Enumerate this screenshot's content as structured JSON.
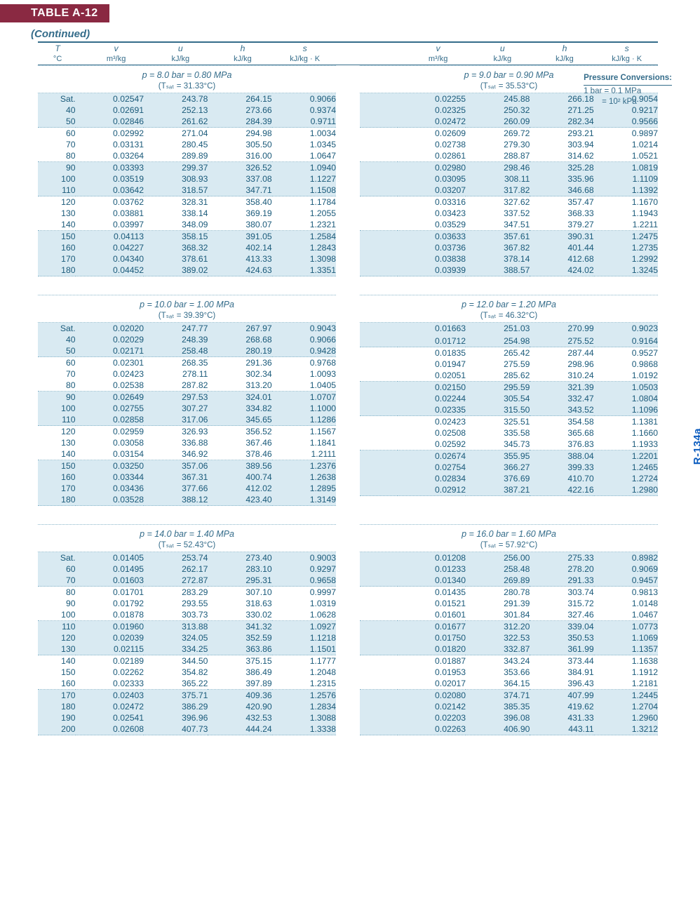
{
  "table_label": "TABLE A-12",
  "continued": "(Continued)",
  "vlabel": "R-134a",
  "sidebox": {
    "title": "Pressure Conversions:",
    "line1": "1 bar = 0.1 MPa",
    "line2": "= 10² kPa"
  },
  "header_syms": [
    "T",
    "v",
    "u",
    "h",
    "s"
  ],
  "header_units": [
    "°C",
    "m³/kg",
    "kJ/kg",
    "kJ/kg",
    "kJ/kg · K"
  ],
  "colors": {
    "accent": "#346c8a",
    "bar": "#8a2942",
    "band": "#d9eaf2",
    "page": "#ffffff",
    "outer": "#dceef5",
    "link_blue": "#0a5bbf"
  },
  "typography": {
    "base_font": "Helvetica Neue, Arial",
    "base_size_pt": 12.2,
    "header_italic": true
  },
  "blocks": [
    {
      "left": {
        "p": "p = 8.0 bar = 0.80 MPa",
        "tsat": "(Tₛₐₜ = 31.33°C)",
        "groups": [
          [
            [
              "Sat.",
              "0.02547",
              "243.78",
              "264.15",
              "0.9066"
            ],
            [
              "40",
              "0.02691",
              "252.13",
              "273.66",
              "0.9374"
            ],
            [
              "50",
              "0.02846",
              "261.62",
              "284.39",
              "0.9711"
            ]
          ],
          [
            [
              "60",
              "0.02992",
              "271.04",
              "294.98",
              "1.0034"
            ],
            [
              "70",
              "0.03131",
              "280.45",
              "305.50",
              "1.0345"
            ],
            [
              "80",
              "0.03264",
              "289.89",
              "316.00",
              "1.0647"
            ]
          ],
          [
            [
              "90",
              "0.03393",
              "299.37",
              "326.52",
              "1.0940"
            ],
            [
              "100",
              "0.03519",
              "308.93",
              "337.08",
              "1.1227"
            ],
            [
              "110",
              "0.03642",
              "318.57",
              "347.71",
              "1.1508"
            ]
          ],
          [
            [
              "120",
              "0.03762",
              "328.31",
              "358.40",
              "1.1784"
            ],
            [
              "130",
              "0.03881",
              "338.14",
              "369.19",
              "1.2055"
            ],
            [
              "140",
              "0.03997",
              "348.09",
              "380.07",
              "1.2321"
            ]
          ],
          [
            [
              "150",
              "0.04113",
              "358.15",
              "391.05",
              "1.2584"
            ],
            [
              "160",
              "0.04227",
              "368.32",
              "402.14",
              "1.2843"
            ],
            [
              "170",
              "0.04340",
              "378.61",
              "413.33",
              "1.3098"
            ],
            [
              "180",
              "0.04452",
              "389.02",
              "424.63",
              "1.3351"
            ]
          ]
        ]
      },
      "right": {
        "p": "p = 9.0 bar = 0.90 MPa",
        "tsat": "(Tₛₐₜ = 35.53°C)",
        "groups": [
          [
            [
              "",
              "0.02255",
              "245.88",
              "266.18",
              "0.9054"
            ],
            [
              "",
              "0.02325",
              "250.32",
              "271.25",
              "0.9217"
            ],
            [
              "",
              "0.02472",
              "260.09",
              "282.34",
              "0.9566"
            ]
          ],
          [
            [
              "",
              "0.02609",
              "269.72",
              "293.21",
              "0.9897"
            ],
            [
              "",
              "0.02738",
              "279.30",
              "303.94",
              "1.0214"
            ],
            [
              "",
              "0.02861",
              "288.87",
              "314.62",
              "1.0521"
            ]
          ],
          [
            [
              "",
              "0.02980",
              "298.46",
              "325.28",
              "1.0819"
            ],
            [
              "",
              "0.03095",
              "308.11",
              "335.96",
              "1.1109"
            ],
            [
              "",
              "0.03207",
              "317.82",
              "346.68",
              "1.1392"
            ]
          ],
          [
            [
              "",
              "0.03316",
              "327.62",
              "357.47",
              "1.1670"
            ],
            [
              "",
              "0.03423",
              "337.52",
              "368.33",
              "1.1943"
            ],
            [
              "",
              "0.03529",
              "347.51",
              "379.27",
              "1.2211"
            ]
          ],
          [
            [
              "",
              "0.03633",
              "357.61",
              "390.31",
              "1.2475"
            ],
            [
              "",
              "0.03736",
              "367.82",
              "401.44",
              "1.2735"
            ],
            [
              "",
              "0.03838",
              "378.14",
              "412.68",
              "1.2992"
            ],
            [
              "",
              "0.03939",
              "388.57",
              "424.02",
              "1.3245"
            ]
          ]
        ]
      }
    },
    {
      "left": {
        "p": "p = 10.0 bar = 1.00 MPa",
        "tsat": "(Tₛₐₜ = 39.39°C)",
        "groups": [
          [
            [
              "Sat.",
              "0.02020",
              "247.77",
              "267.97",
              "0.9043"
            ],
            [
              "40",
              "0.02029",
              "248.39",
              "268.68",
              "0.9066"
            ],
            [
              "50",
              "0.02171",
              "258.48",
              "280.19",
              "0.9428"
            ]
          ],
          [
            [
              "60",
              "0.02301",
              "268.35",
              "291.36",
              "0.9768"
            ],
            [
              "70",
              "0.02423",
              "278.11",
              "302.34",
              "1.0093"
            ],
            [
              "80",
              "0.02538",
              "287.82",
              "313.20",
              "1.0405"
            ]
          ],
          [
            [
              "90",
              "0.02649",
              "297.53",
              "324.01",
              "1.0707"
            ],
            [
              "100",
              "0.02755",
              "307.27",
              "334.82",
              "1.1000"
            ],
            [
              "110",
              "0.02858",
              "317.06",
              "345.65",
              "1.1286"
            ]
          ],
          [
            [
              "120",
              "0.02959",
              "326.93",
              "356.52",
              "1.1567"
            ],
            [
              "130",
              "0.03058",
              "336.88",
              "367.46",
              "1.1841"
            ],
            [
              "140",
              "0.03154",
              "346.92",
              "378.46",
              "1.2111"
            ]
          ],
          [
            [
              "150",
              "0.03250",
              "357.06",
              "389.56",
              "1.2376"
            ],
            [
              "160",
              "0.03344",
              "367.31",
              "400.74",
              "1.2638"
            ],
            [
              "170",
              "0.03436",
              "377.66",
              "412.02",
              "1.2895"
            ],
            [
              "180",
              "0.03528",
              "388.12",
              "423.40",
              "1.3149"
            ]
          ]
        ]
      },
      "right": {
        "p": "p = 12.0 bar = 1.20 MPa",
        "tsat": "(Tₛₐₜ = 46.32°C)",
        "groups": [
          [
            [
              "",
              "0.01663",
              "251.03",
              "270.99",
              "0.9023"
            ],
            [
              "",
              "",
              "",
              "",
              ""
            ],
            [
              "",
              "0.01712",
              "254.98",
              "275.52",
              "0.9164"
            ]
          ],
          [
            [
              "",
              "0.01835",
              "265.42",
              "287.44",
              "0.9527"
            ],
            [
              "",
              "0.01947",
              "275.59",
              "298.96",
              "0.9868"
            ],
            [
              "",
              "0.02051",
              "285.62",
              "310.24",
              "1.0192"
            ]
          ],
          [
            [
              "",
              "0.02150",
              "295.59",
              "321.39",
              "1.0503"
            ],
            [
              "",
              "0.02244",
              "305.54",
              "332.47",
              "1.0804"
            ],
            [
              "",
              "0.02335",
              "315.50",
              "343.52",
              "1.1096"
            ]
          ],
          [
            [
              "",
              "0.02423",
              "325.51",
              "354.58",
              "1.1381"
            ],
            [
              "",
              "0.02508",
              "335.58",
              "365.68",
              "1.1660"
            ],
            [
              "",
              "0.02592",
              "345.73",
              "376.83",
              "1.1933"
            ]
          ],
          [
            [
              "",
              "0.02674",
              "355.95",
              "388.04",
              "1.2201"
            ],
            [
              "",
              "0.02754",
              "366.27",
              "399.33",
              "1.2465"
            ],
            [
              "",
              "0.02834",
              "376.69",
              "410.70",
              "1.2724"
            ],
            [
              "",
              "0.02912",
              "387.21",
              "422.16",
              "1.2980"
            ]
          ]
        ]
      }
    },
    {
      "left": {
        "p": "p = 14.0 bar = 1.40 MPa",
        "tsat": "(Tₛₐₜ = 52.43°C)",
        "groups": [
          [
            [
              "Sat.",
              "0.01405",
              "253.74",
              "273.40",
              "0.9003"
            ],
            [
              "60",
              "0.01495",
              "262.17",
              "283.10",
              "0.9297"
            ],
            [
              "70",
              "0.01603",
              "272.87",
              "295.31",
              "0.9658"
            ]
          ],
          [
            [
              "80",
              "0.01701",
              "283.29",
              "307.10",
              "0.9997"
            ],
            [
              "90",
              "0.01792",
              "293.55",
              "318.63",
              "1.0319"
            ],
            [
              "100",
              "0.01878",
              "303.73",
              "330.02",
              "1.0628"
            ]
          ],
          [
            [
              "110",
              "0.01960",
              "313.88",
              "341.32",
              "1.0927"
            ],
            [
              "120",
              "0.02039",
              "324.05",
              "352.59",
              "1.1218"
            ],
            [
              "130",
              "0.02115",
              "334.25",
              "363.86",
              "1.1501"
            ]
          ],
          [
            [
              "140",
              "0.02189",
              "344.50",
              "375.15",
              "1.1777"
            ],
            [
              "150",
              "0.02262",
              "354.82",
              "386.49",
              "1.2048"
            ],
            [
              "160",
              "0.02333",
              "365.22",
              "397.89",
              "1.2315"
            ]
          ],
          [
            [
              "170",
              "0.02403",
              "375.71",
              "409.36",
              "1.2576"
            ],
            [
              "180",
              "0.02472",
              "386.29",
              "420.90",
              "1.2834"
            ],
            [
              "190",
              "0.02541",
              "396.96",
              "432.53",
              "1.3088"
            ],
            [
              "200",
              "0.02608",
              "407.73",
              "444.24",
              "1.3338"
            ]
          ]
        ]
      },
      "right": {
        "p": "p = 16.0 bar = 1.60 MPa",
        "tsat": "(Tₛₐₜ = 57.92°C)",
        "groups": [
          [
            [
              "",
              "0.01208",
              "256.00",
              "275.33",
              "0.8982"
            ],
            [
              "",
              "0.01233",
              "258.48",
              "278.20",
              "0.9069"
            ],
            [
              "",
              "0.01340",
              "269.89",
              "291.33",
              "0.9457"
            ]
          ],
          [
            [
              "",
              "0.01435",
              "280.78",
              "303.74",
              "0.9813"
            ],
            [
              "",
              "0.01521",
              "291.39",
              "315.72",
              "1.0148"
            ],
            [
              "",
              "0.01601",
              "301.84",
              "327.46",
              "1.0467"
            ]
          ],
          [
            [
              "",
              "0.01677",
              "312.20",
              "339.04",
              "1.0773"
            ],
            [
              "",
              "0.01750",
              "322.53",
              "350.53",
              "1.1069"
            ],
            [
              "",
              "0.01820",
              "332.87",
              "361.99",
              "1.1357"
            ]
          ],
          [
            [
              "",
              "0.01887",
              "343.24",
              "373.44",
              "1.1638"
            ],
            [
              "",
              "0.01953",
              "353.66",
              "384.91",
              "1.1912"
            ],
            [
              "",
              "0.02017",
              "364.15",
              "396.43",
              "1.2181"
            ]
          ],
          [
            [
              "",
              "0.02080",
              "374.71",
              "407.99",
              "1.2445"
            ],
            [
              "",
              "0.02142",
              "385.35",
              "419.62",
              "1.2704"
            ],
            [
              "",
              "0.02203",
              "396.08",
              "431.33",
              "1.2960"
            ],
            [
              "",
              "0.02263",
              "406.90",
              "443.11",
              "1.3212"
            ]
          ]
        ]
      }
    }
  ]
}
